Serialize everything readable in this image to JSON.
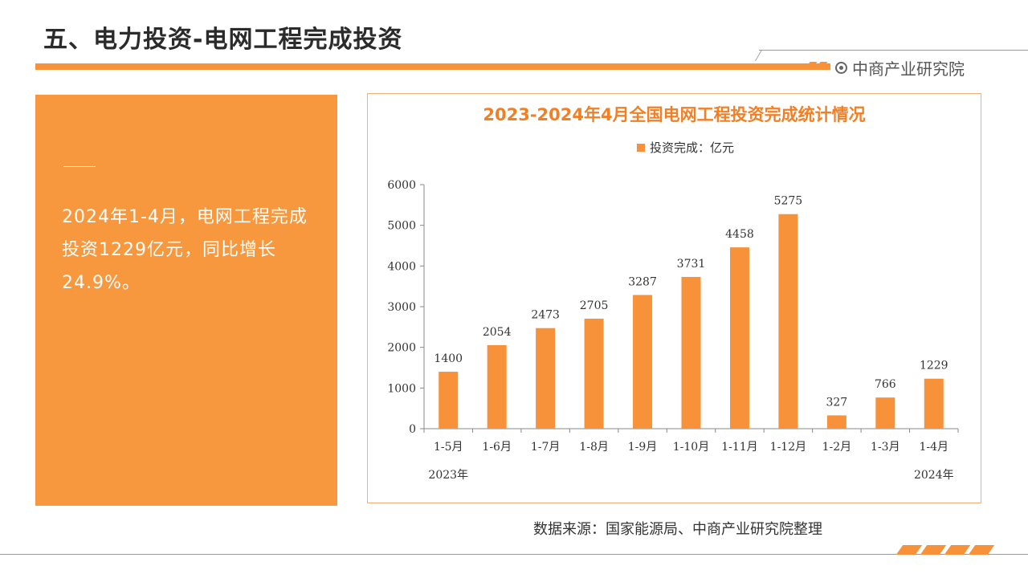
{
  "header": {
    "title": "五、电力投资-电网工程完成投资",
    "brand": "中商产业研究院",
    "brand_icon": "target-circle-icon",
    "accent_color": "#f7923a"
  },
  "summary": {
    "text": "2024年1-4月，电网工程完成投资1229亿元，同比增长24.9%。"
  },
  "source": "数据来源：国家能源局、中商产业研究院整理",
  "chart_data": {
    "type": "bar",
    "title": "2023-2024年4月全国电网工程投资完成统计情况",
    "legend": "投资完成：亿元",
    "categories": [
      "1-5月",
      "1-6月",
      "1-7月",
      "1-8月",
      "1-9月",
      "1-10月",
      "1-11月",
      "1-12月",
      "1-2月",
      "1-3月",
      "1-4月"
    ],
    "series": [
      {
        "name": "投资完成：亿元",
        "values": [
          1400,
          2054,
          2473,
          2705,
          3287,
          3731,
          4458,
          5275,
          327,
          766,
          1229
        ]
      }
    ],
    "year_labels": [
      "2023年",
      "2024年"
    ],
    "yticks": [
      0,
      1000,
      2000,
      3000,
      4000,
      5000,
      6000
    ],
    "ylim": [
      0,
      6000
    ],
    "bar_color": "#f7923a",
    "grid": false,
    "legend_position": "top"
  }
}
